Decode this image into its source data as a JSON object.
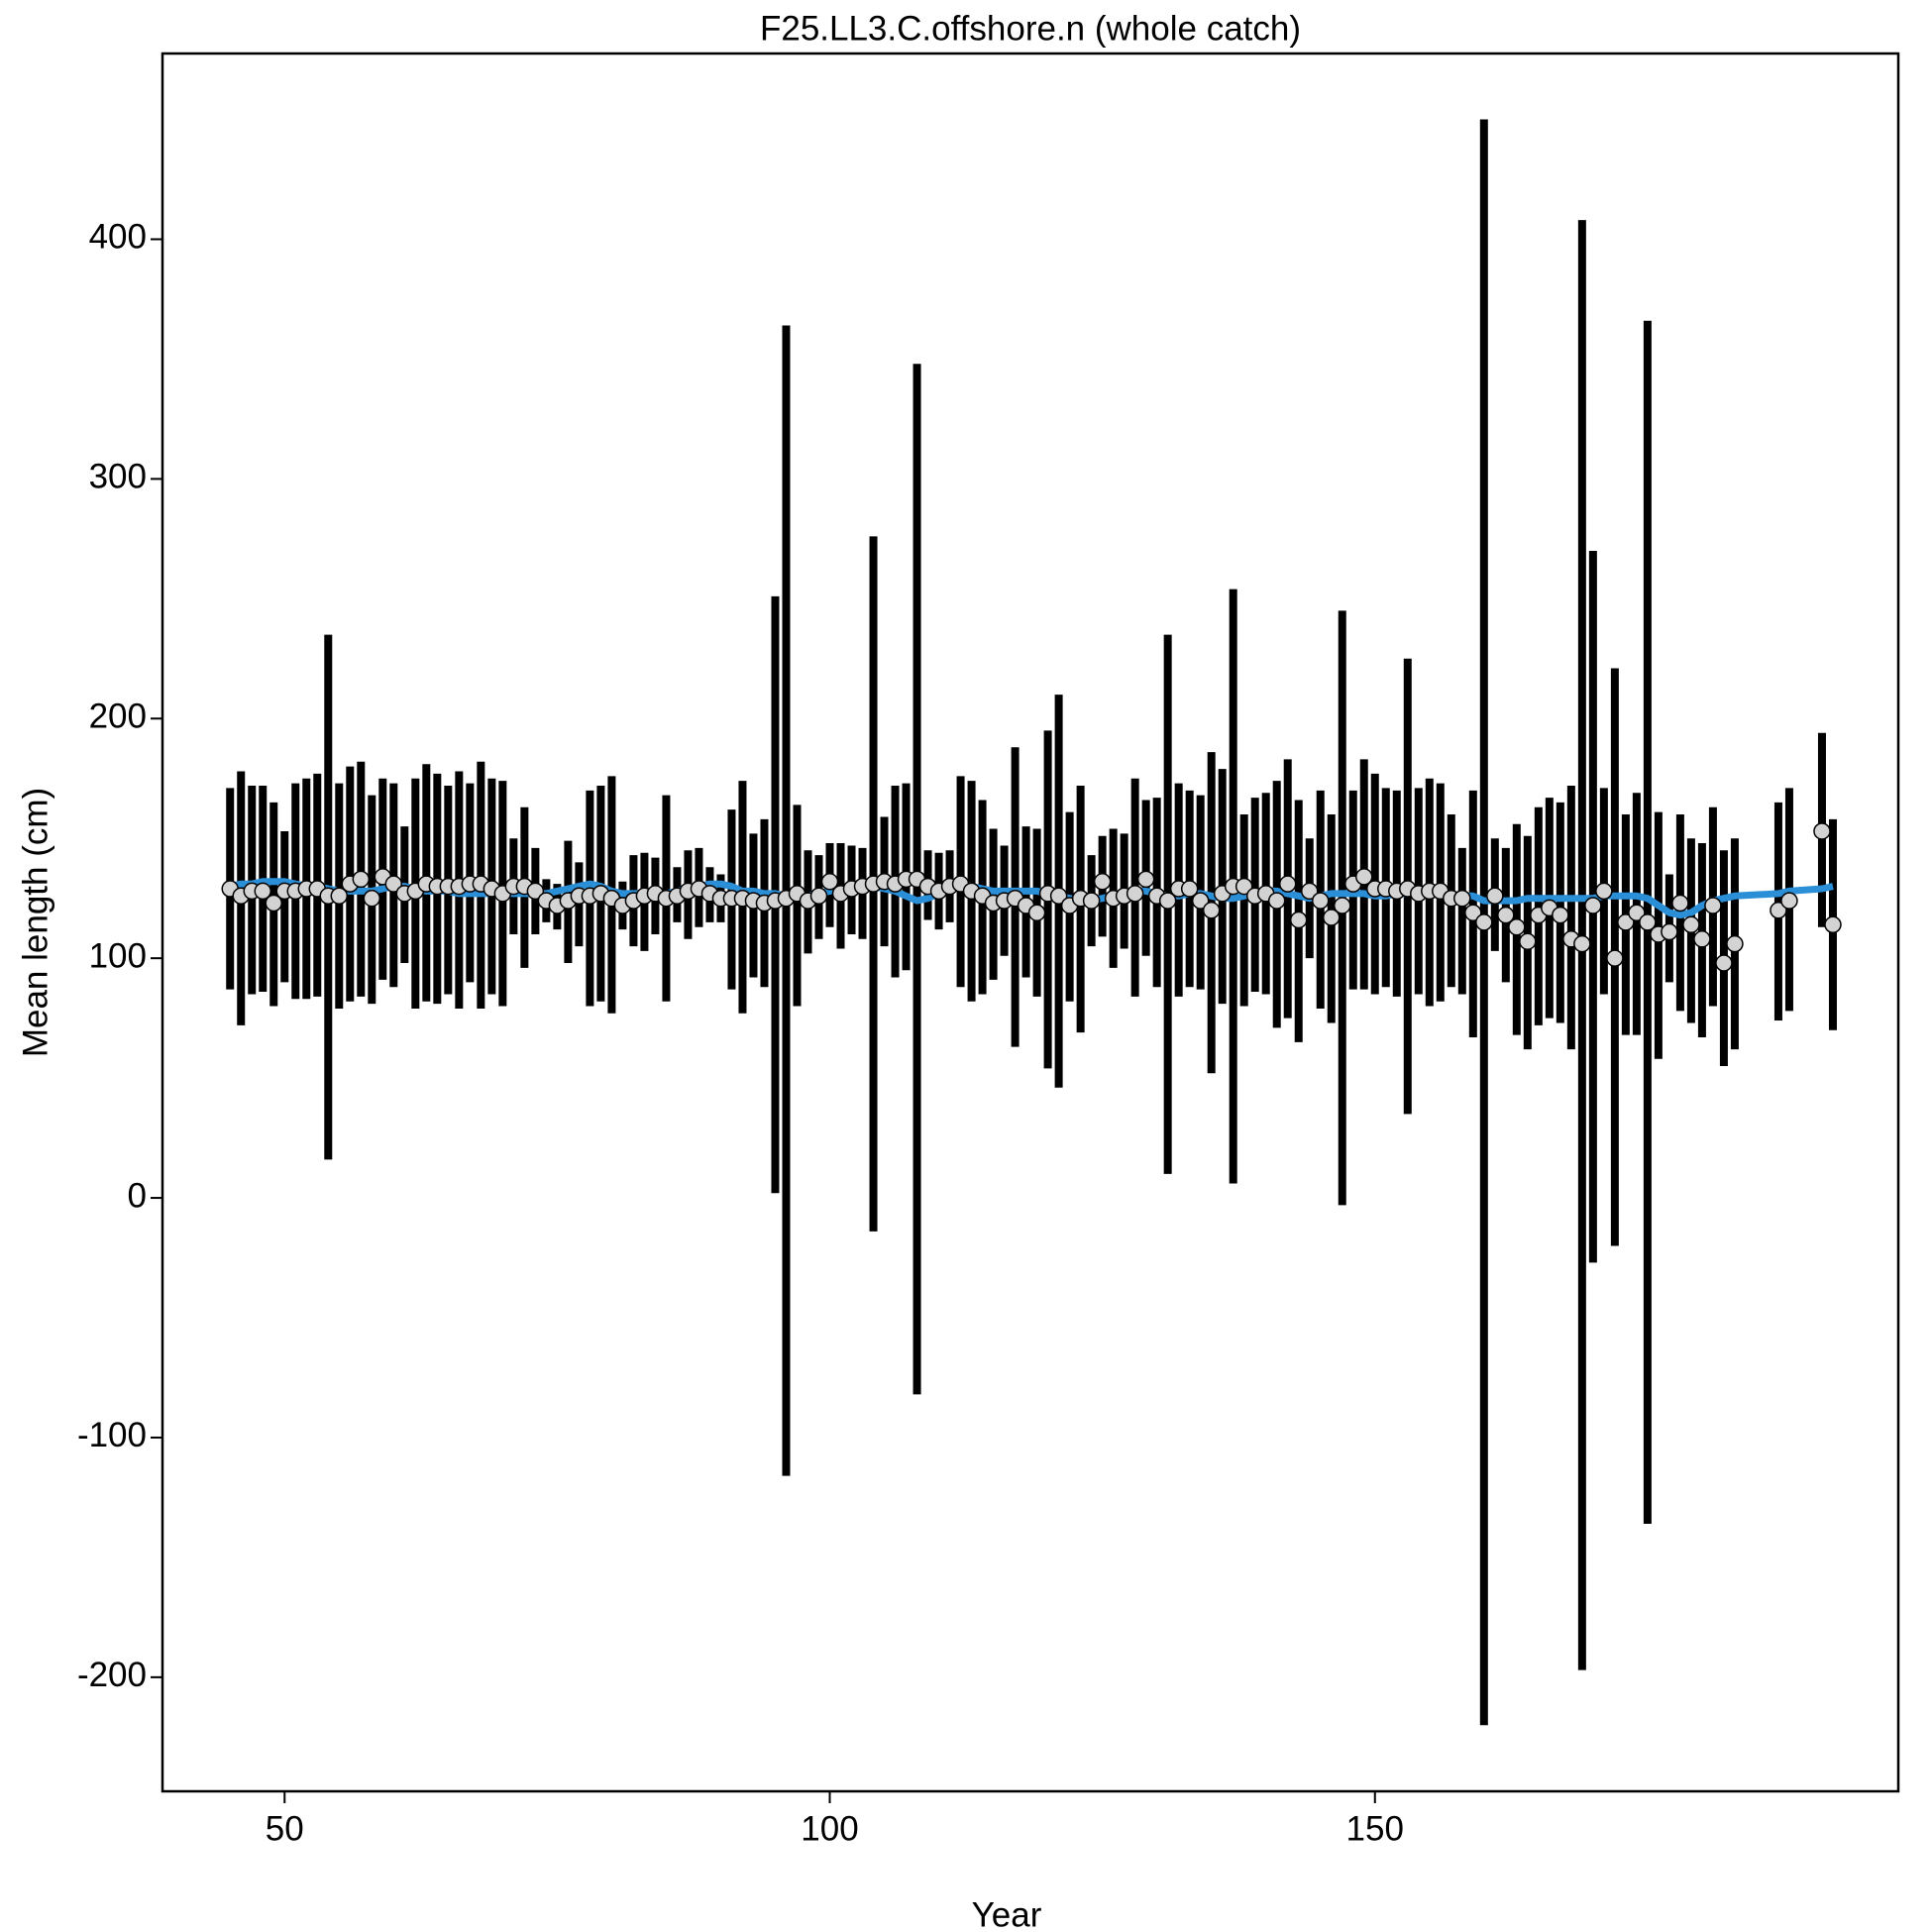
{
  "chart_data": {
    "type": "errorbar",
    "title": "F25.LL3.C.offshore.n (whole catch)",
    "xlabel": "Year",
    "ylabel": "Mean length (cm)",
    "xlim": [
      38.8,
      198
    ],
    "ylim": [
      -247.6,
      477.5
    ],
    "xticks": [
      50,
      100,
      150
    ],
    "yticks": [
      -200,
      -100,
      0,
      100,
      200,
      300,
      400
    ],
    "point_color": "#d3d3d3",
    "bar_color": "#000000",
    "fit_color": "#2b8fd8",
    "x": [
      45,
      46,
      47,
      48,
      49,
      50,
      51,
      52,
      53,
      54,
      55,
      56,
      57,
      58,
      59,
      60,
      61,
      62,
      63,
      64,
      65,
      66,
      67,
      68,
      69,
      70,
      71,
      72,
      73,
      74,
      75,
      76,
      77,
      78,
      79,
      80,
      81,
      82,
      83,
      84,
      85,
      86,
      87,
      88,
      89,
      90,
      91,
      92,
      93,
      94,
      95,
      96,
      97,
      98,
      99,
      100,
      101,
      102,
      103,
      104,
      105,
      106,
      107,
      108,
      109,
      110,
      111,
      112,
      113,
      114,
      115,
      116,
      117,
      118,
      119,
      120,
      121,
      122,
      123,
      124,
      125,
      126,
      127,
      128,
      129,
      130,
      131,
      132,
      133,
      134,
      135,
      136,
      137,
      138,
      139,
      140,
      141,
      142,
      143,
      144,
      145,
      146,
      147,
      148,
      149,
      150,
      151,
      152,
      153,
      154,
      155,
      156,
      157,
      158,
      159,
      160,
      161,
      162,
      163,
      164,
      165,
      166,
      167,
      168,
      169,
      170,
      171,
      172,
      173,
      174,
      175,
      176,
      177,
      178,
      179,
      180,
      181,
      182,
      183,
      187,
      188,
      191,
      192
    ],
    "values": [
      129,
      126,
      128,
      128,
      123,
      128,
      128,
      129,
      129,
      126,
      126,
      131,
      133,
      125,
      134,
      131,
      127,
      128,
      131,
      130,
      130,
      130,
      131,
      131,
      129,
      127,
      130,
      130,
      128,
      124,
      122,
      124,
      126,
      126,
      127,
      125,
      122,
      124,
      126,
      127,
      125,
      126,
      128,
      129,
      127,
      125,
      125,
      125,
      124,
      123,
      124,
      125,
      127,
      124,
      126,
      132,
      127,
      129,
      130,
      131,
      132,
      131,
      133,
      133,
      130,
      128,
      130,
      131,
      128,
      126,
      123,
      124,
      125,
      122,
      119,
      127,
      126,
      122,
      125,
      124,
      132,
      125,
      126,
      127,
      133,
      126,
      124,
      129,
      129,
      124,
      120,
      127,
      130,
      130,
      126,
      127,
      124,
      131,
      116,
      128,
      124,
      117,
      122,
      131,
      134,
      129,
      129,
      128,
      129,
      127,
      128,
      128,
      125,
      125,
      119,
      115,
      126,
      118,
      113,
      107,
      118,
      121,
      118,
      108,
      106,
      122,
      128,
      100,
      115,
      119,
      115,
      110,
      111,
      123,
      114,
      108,
      122,
      98,
      106,
      120,
      124,
      153,
      114
    ],
    "lower": [
      87,
      72,
      85,
      86,
      80,
      90,
      83,
      83,
      84,
      16,
      79,
      82,
      84,
      81,
      91,
      88,
      98,
      79,
      82,
      81,
      85,
      79,
      90,
      79,
      85,
      80,
      110,
      96,
      110,
      115,
      112,
      98,
      105,
      80,
      82,
      77,
      112,
      105,
      103,
      110,
      82,
      115,
      108,
      113,
      115,
      115,
      87,
      77,
      92,
      88,
      2,
      -116,
      80,
      102,
      108,
      113,
      104,
      110,
      108,
      -14,
      105,
      92,
      95,
      -82,
      116,
      112,
      115,
      88,
      82,
      85,
      91,
      101,
      63,
      92,
      84,
      54,
      46,
      82,
      69,
      105,
      109,
      96,
      104,
      84,
      101,
      88,
      10,
      84,
      88,
      87,
      52,
      81,
      6,
      80,
      86,
      85,
      71,
      75,
      65,
      100,
      79,
      73,
      -3,
      87,
      87,
      85,
      88,
      84,
      35,
      85,
      80,
      82,
      88,
      85,
      67,
      -220,
      103,
      90,
      68,
      62,
      72,
      75,
      73,
      62,
      -197,
      -27,
      85,
      -20,
      68,
      68,
      -136,
      58,
      90,
      78,
      73,
      67,
      80,
      55,
      62,
      74,
      78,
      113,
      70
    ],
    "upper": [
      171,
      178,
      172,
      172,
      165,
      153,
      173,
      175,
      177,
      235,
      173,
      180,
      182,
      168,
      175,
      173,
      155,
      175,
      181,
      177,
      172,
      178,
      173,
      182,
      175,
      174,
      150,
      163,
      146,
      133,
      131,
      149,
      140,
      170,
      172,
      176,
      132,
      143,
      144,
      142,
      168,
      138,
      145,
      146,
      138,
      135,
      162,
      174,
      152,
      158,
      251,
      364,
      164,
      145,
      143,
      148,
      148,
      147,
      146,
      276,
      159,
      172,
      173,
      348,
      145,
      144,
      145,
      176,
      174,
      166,
      154,
      147,
      188,
      155,
      154,
      195,
      210,
      161,
      172,
      143,
      151,
      154,
      152,
      175,
      166,
      167,
      235,
      173,
      170,
      168,
      186,
      179,
      254,
      160,
      167,
      169,
      174,
      183,
      166,
      150,
      170,
      160,
      245,
      170,
      183,
      177,
      171,
      170,
      225,
      171,
      175,
      173,
      160,
      146,
      170,
      450,
      150,
      146,
      156,
      151,
      163,
      167,
      165,
      172,
      408,
      270,
      171,
      221,
      160,
      169,
      366,
      161,
      135,
      160,
      150,
      148,
      163,
      145,
      150,
      165,
      171,
      194,
      158
    ],
    "fit": [
      130,
      131,
      131,
      132,
      132,
      132,
      131,
      130,
      130,
      129,
      128,
      128,
      128,
      128,
      129,
      130,
      130,
      129,
      128,
      128,
      128,
      127,
      127,
      127,
      127,
      127,
      127,
      127,
      127,
      127,
      128,
      129,
      130,
      131,
      130,
      128,
      127,
      127,
      127,
      127,
      127,
      128,
      129,
      130,
      131,
      131,
      130,
      128,
      128,
      127,
      127,
      126,
      126,
      126,
      127,
      128,
      129,
      129,
      130,
      130,
      129,
      128,
      126,
      124,
      125,
      127,
      129,
      131,
      130,
      129,
      128,
      128,
      128,
      128,
      128,
      127,
      126,
      125,
      124,
      124,
      125,
      126,
      127,
      128,
      128,
      127,
      126,
      126,
      127,
      127,
      126,
      125,
      125,
      126,
      127,
      128,
      128,
      127,
      126,
      125,
      126,
      127,
      127,
      127,
      127,
      126,
      126,
      127,
      127,
      128,
      128,
      127,
      127,
      126,
      126,
      124,
      124,
      124,
      124,
      125,
      125,
      125,
      125,
      125,
      125,
      125,
      126,
      126,
      126,
      126,
      125,
      122,
      119,
      118,
      119,
      122,
      124,
      125,
      126,
      127,
      128,
      129,
      130
    ]
  }
}
